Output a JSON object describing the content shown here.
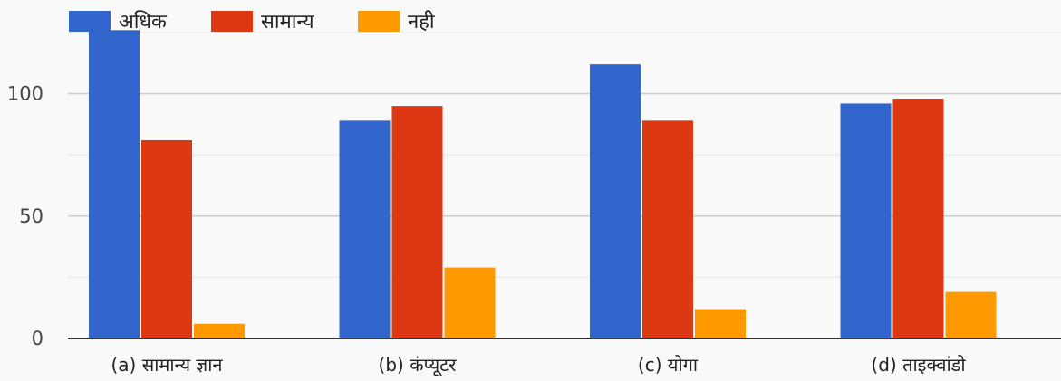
{
  "chart_data": {
    "type": "bar",
    "categories": [
      "(a) सामान्य ज्ञान",
      "(b) कंप्यूटर",
      "(c) योगा",
      "(d) ताइक्वांडो"
    ],
    "series": [
      {
        "name": "अधिक",
        "color": "#3366cc",
        "values": [
          126,
          89,
          112,
          96
        ]
      },
      {
        "name": "सामान्य",
        "color": "#dc3912",
        "values": [
          81,
          95,
          89,
          98
        ]
      },
      {
        "name": "नही",
        "color": "#ff9900",
        "values": [
          6,
          29,
          12,
          19
        ]
      }
    ],
    "yticks": [
      0,
      50,
      100
    ],
    "ylim": [
      0,
      125
    ],
    "grid": true,
    "legend": "top-left"
  }
}
